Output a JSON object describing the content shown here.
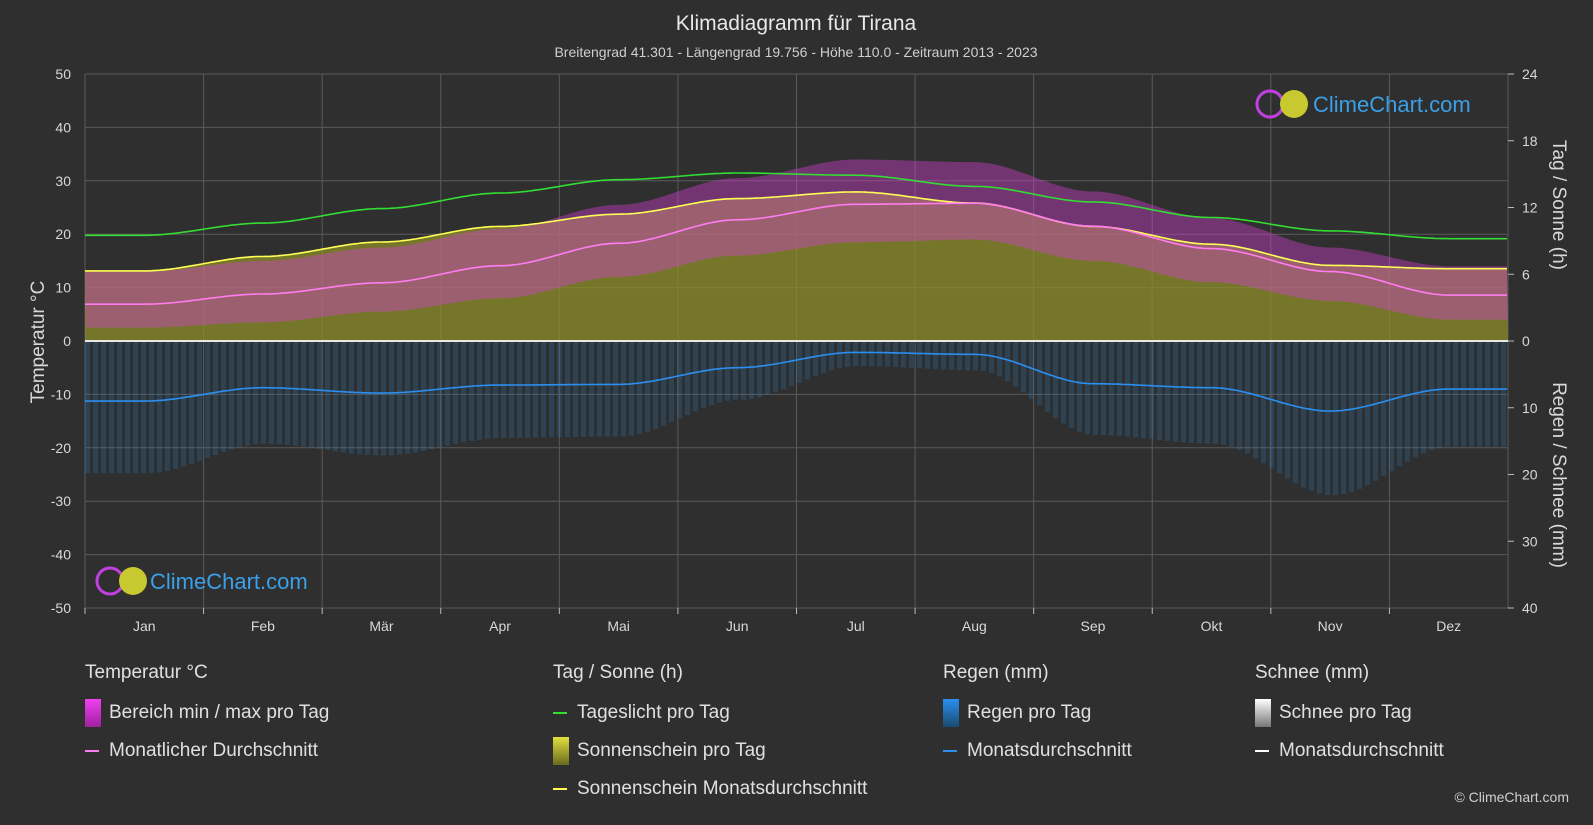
{
  "header": {
    "title": "Klimadiagramm für Tirana",
    "subtitle": "Breitengrad 41.301 - Längengrad 19.756 - Höhe 110.0 - Zeitraum 2013 - 2023"
  },
  "brand": {
    "name": "ClimeChart.com",
    "copyright": "© ClimeChart.com",
    "color": "#3aa0e8"
  },
  "colors": {
    "background": "#2f2f2f",
    "grid": "#5a5a5a",
    "temp_range": "#d63fd6",
    "temp_avg": "#ff7cf0",
    "daylight": "#33dd33",
    "sunshine_fill": "#8f8f2a",
    "sunshine_avg": "#ffff55",
    "rain": "#2a7ab8",
    "rain_avg": "#2b8ff0",
    "snow": "#ffffff"
  },
  "legend": {
    "temperature": {
      "title": "Temperatur °C",
      "range_label": "Bereich min / max pro Tag",
      "avg_label": "Monatlicher Durchschnitt"
    },
    "sun": {
      "title": "Tag / Sonne (h)",
      "daylight_label": "Tageslicht pro Tag",
      "sunshine_label": "Sonnenschein pro Tag",
      "sunshine_avg_label": "Sonnenschein Monatsdurchschnitt"
    },
    "rain": {
      "title": "Regen (mm)",
      "per_day_label": "Regen pro Tag",
      "avg_label": "Monatsdurchschnitt"
    },
    "snow": {
      "title": "Schnee (mm)",
      "per_day_label": "Schnee pro Tag",
      "avg_label": "Monatsdurchschnitt"
    }
  },
  "chart_data": {
    "type": "line",
    "categories": [
      "Jan",
      "Feb",
      "Mär",
      "Apr",
      "Mai",
      "Jun",
      "Jul",
      "Aug",
      "Sep",
      "Okt",
      "Nov",
      "Dez"
    ],
    "y_left": {
      "label": "Temperatur °C",
      "range": [
        -50,
        50
      ],
      "ticks": [
        50,
        40,
        30,
        20,
        10,
        0,
        -10,
        -20,
        -30,
        -40,
        -50
      ]
    },
    "y_right_top": {
      "label": "Tag / Sonne (h)",
      "range": [
        0,
        24
      ],
      "ticks": [
        24,
        18,
        12,
        6,
        0
      ]
    },
    "y_right_bottom": {
      "label": "Regen / Schnee (mm)",
      "range": [
        0,
        40
      ],
      "ticks": [
        0,
        10,
        20,
        30,
        40
      ]
    },
    "grid": true,
    "series": [
      {
        "name": "Tageslicht pro Tag",
        "unit": "h",
        "values": [
          9.5,
          10.6,
          11.9,
          13.3,
          14.5,
          15.1,
          14.9,
          13.9,
          12.5,
          11.1,
          9.9,
          9.2
        ]
      },
      {
        "name": "Sonnenschein Monatsdurchschnitt",
        "unit": "h",
        "values": [
          6.3,
          7.6,
          8.9,
          10.3,
          11.4,
          12.8,
          13.4,
          12.4,
          10.3,
          8.7,
          6.8,
          6.5
        ]
      },
      {
        "name": "Monatlicher Durchschnitt",
        "unit": "°C",
        "values": [
          6.9,
          8.8,
          10.9,
          14.1,
          18.3,
          22.7,
          25.6,
          25.8,
          21.5,
          17.3,
          13.0,
          8.6
        ]
      },
      {
        "name": "Regen Monatsdurchschnitt",
        "unit": "mm",
        "values": [
          9.0,
          7.0,
          7.8,
          6.6,
          6.5,
          4.0,
          1.7,
          2.0,
          6.4,
          7.0,
          10.5,
          7.2
        ]
      }
    ],
    "temp_range_per_day": {
      "min": [
        2.5,
        3.5,
        5.5,
        8.0,
        12.0,
        16.0,
        18.5,
        19.0,
        15.0,
        11.0,
        7.5,
        4.0
      ],
      "max": [
        13.0,
        15.0,
        17.5,
        21.0,
        25.5,
        30.5,
        34.0,
        33.5,
        28.0,
        23.0,
        17.5,
        14.0
      ]
    }
  }
}
